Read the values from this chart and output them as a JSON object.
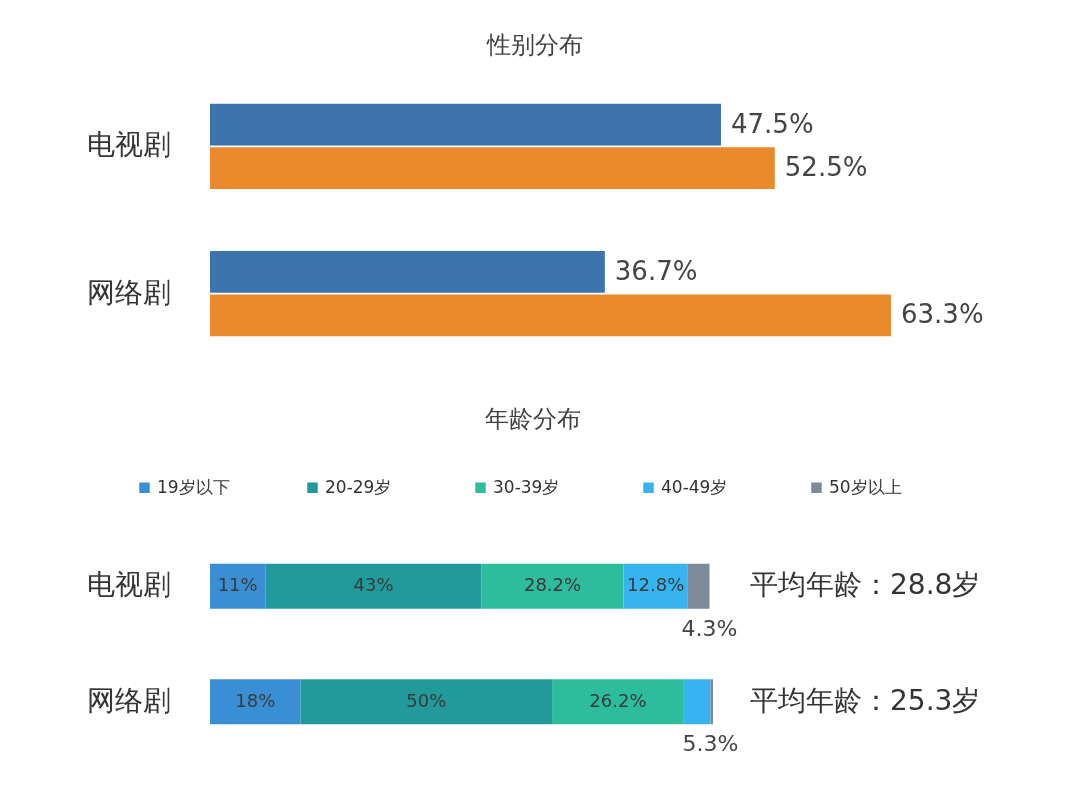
{
  "chart_data": [
    {
      "type": "bar",
      "orientation": "horizontal",
      "title": "性别分布",
      "categories": [
        "电视剧",
        "网络剧"
      ],
      "series": [
        {
          "color": "#3e74ad",
          "values": [
            47.5,
            36.7
          ],
          "value_labels": [
            "47.5%",
            "36.7%"
          ]
        },
        {
          "color": "#eb8a2c",
          "values": [
            52.5,
            63.3
          ],
          "value_labels": [
            "52.5%",
            "63.3%"
          ]
        }
      ]
    },
    {
      "type": "bar",
      "orientation": "horizontal",
      "stacked": true,
      "title": "年龄分布",
      "categories": [
        "电视剧",
        "网络剧"
      ],
      "legend": "top",
      "series": [
        {
          "name": "19岁以下",
          "color": "#3a8fd4",
          "values": [
            11,
            18
          ],
          "value_labels": [
            "11%",
            "18%"
          ]
        },
        {
          "name": "20-29岁",
          "color": "#22999a",
          "values": [
            43,
            50
          ],
          "value_labels": [
            "43%",
            "50%"
          ]
        },
        {
          "name": "30-39岁",
          "color": "#2dbd9c",
          "values": [
            28.2,
            26.2
          ],
          "value_labels": [
            "28.2%",
            "26.2%"
          ]
        },
        {
          "name": "40-49岁",
          "color": "#36b4ef",
          "values": [
            12.8,
            5.3
          ],
          "value_labels": [
            "12.8%",
            "5.3%"
          ]
        },
        {
          "name": "50岁以上",
          "color": "#7d8a98",
          "values": [
            4.3,
            0.5
          ],
          "value_labels": [
            "4.3%",
            null
          ]
        }
      ],
      "annotations": [
        "平均年龄：28.8岁",
        "平均年龄：25.3岁"
      ]
    }
  ]
}
